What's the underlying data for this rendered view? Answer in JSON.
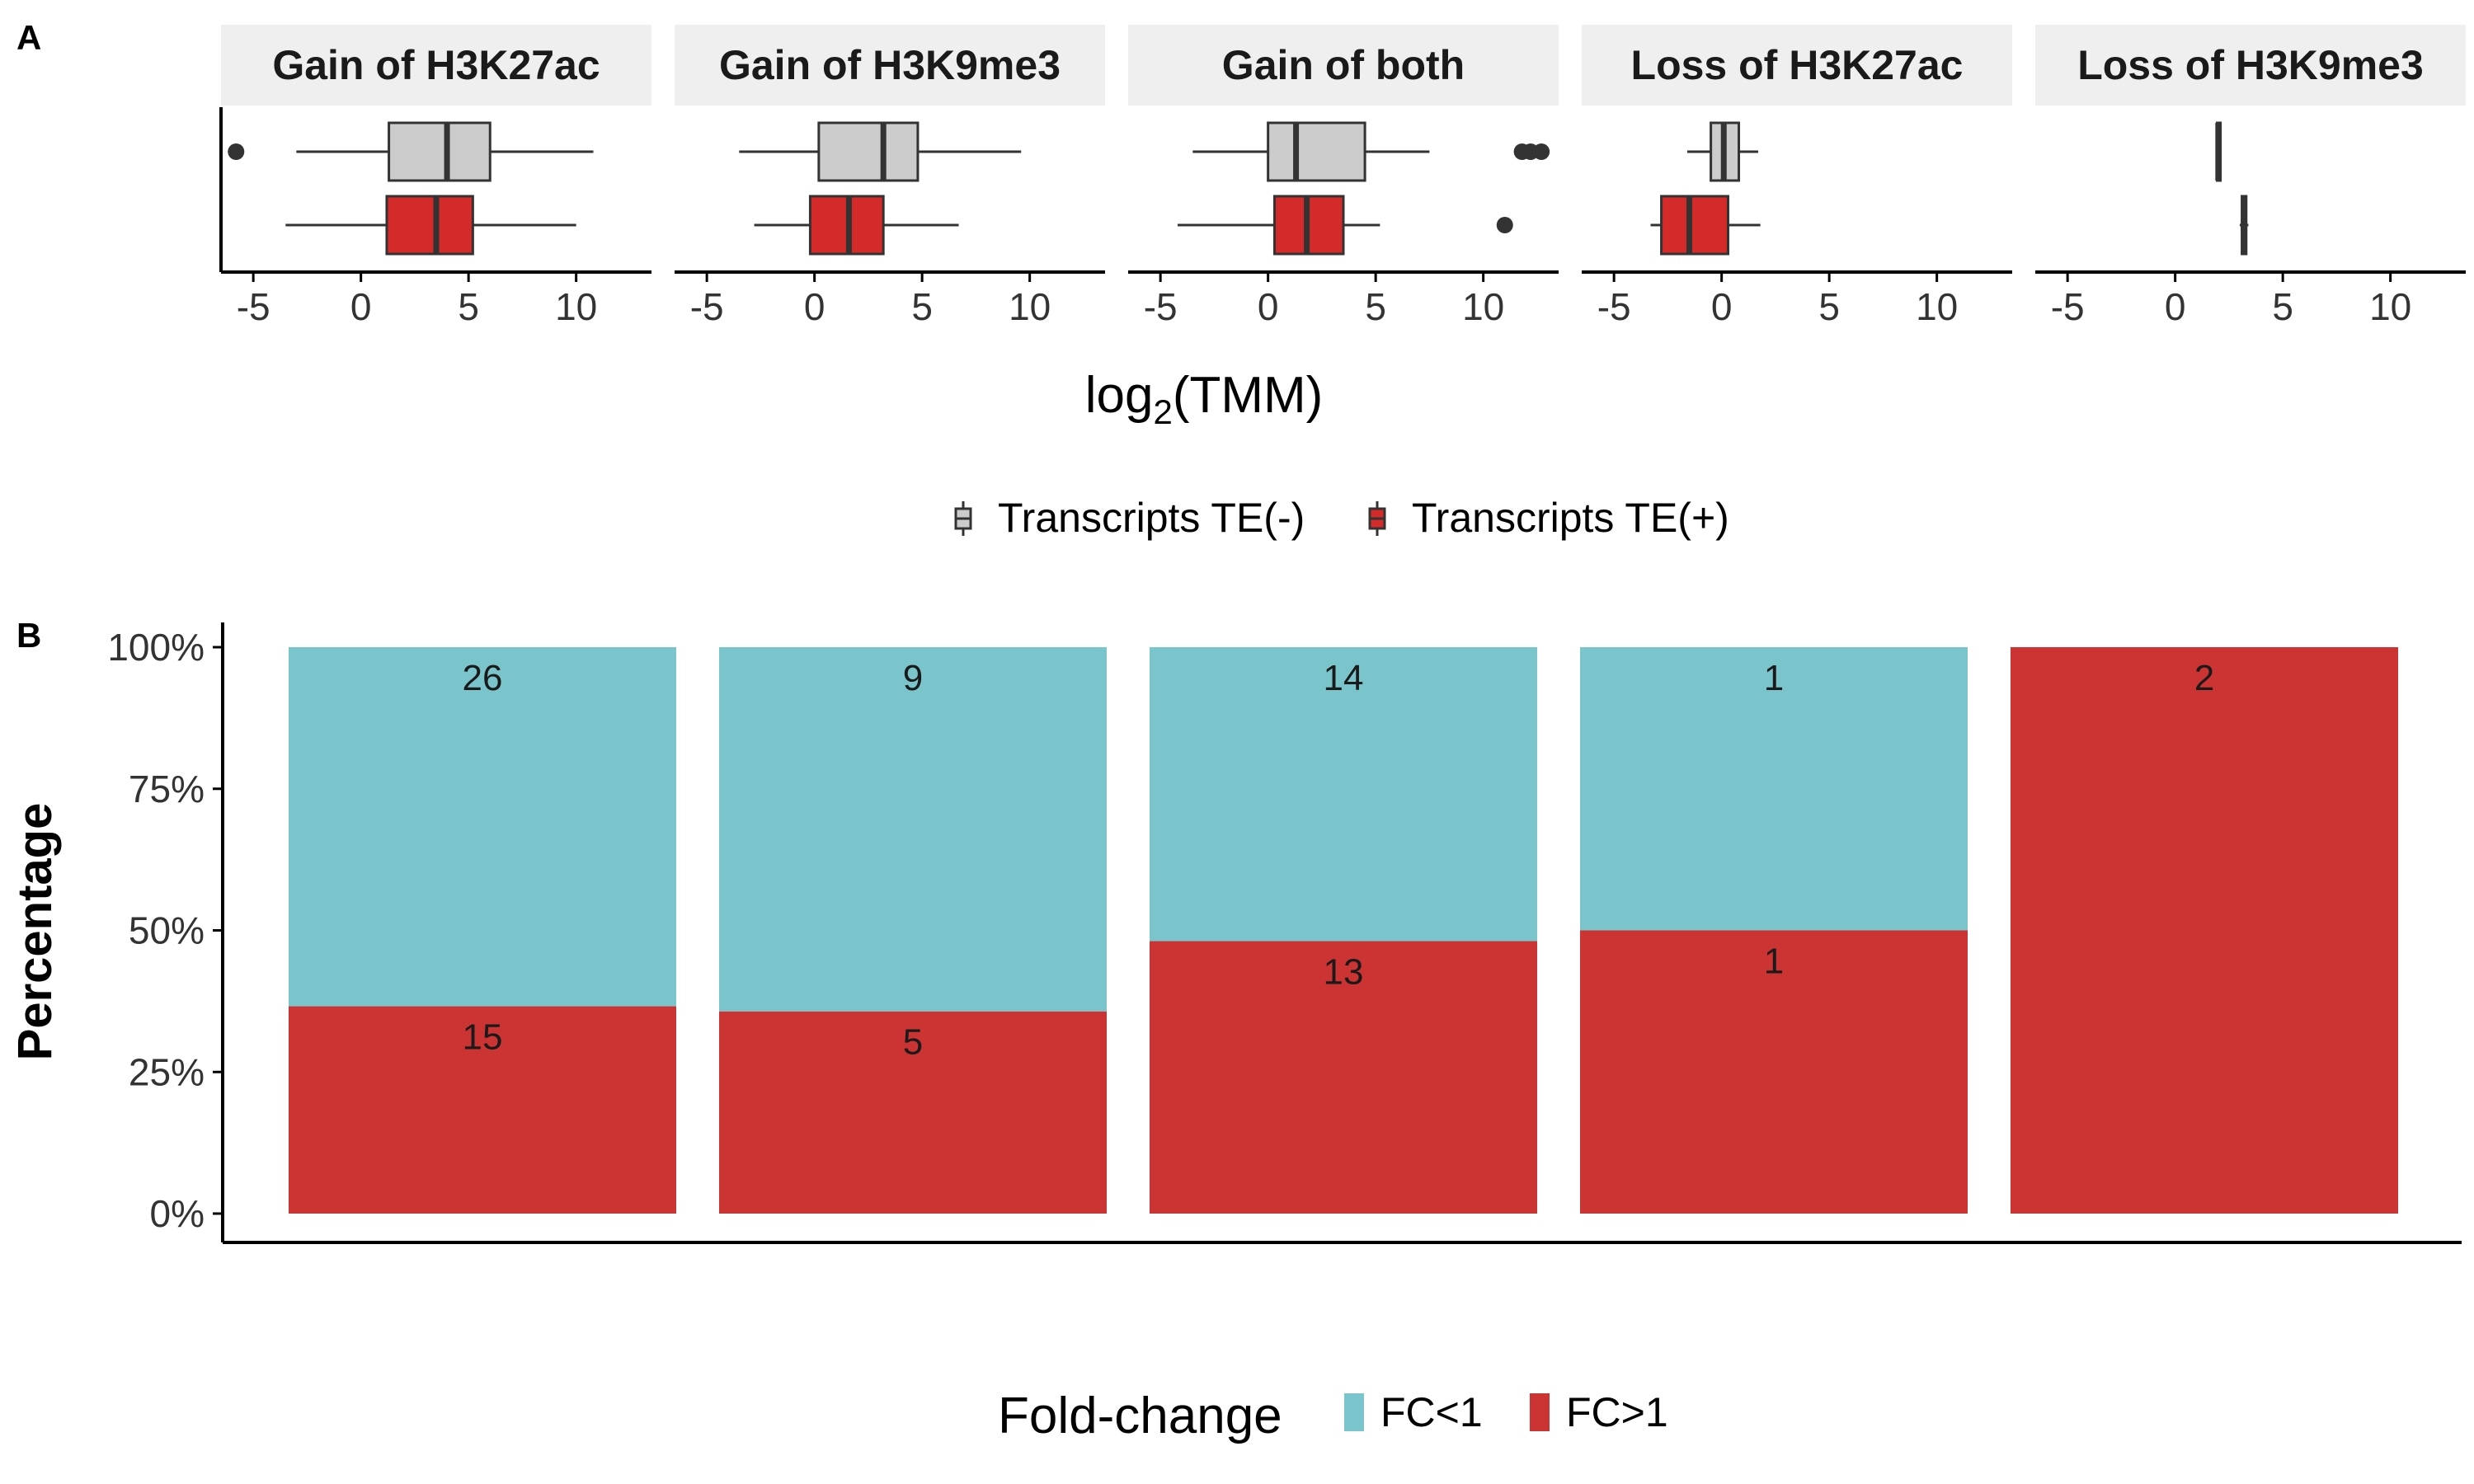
{
  "panel_a": {
    "tag": "A",
    "xlabel_main": "log",
    "xlabel_sub": "2",
    "xlabel_rest": "(TMM)",
    "legend": {
      "items": [
        {
          "label": "Transcripts TE(-)",
          "color": "#cccccc"
        },
        {
          "label": "Transcripts TE(+)",
          "color": "#d42a2a"
        }
      ]
    }
  },
  "panel_b": {
    "tag": "B",
    "ylabel": "Percentage",
    "legend": {
      "title": "Fold-change",
      "items": [
        {
          "label": "FC<1",
          "color": "#7ac4cc"
        },
        {
          "label": "FC>1",
          "color": "#cc3333"
        }
      ]
    }
  },
  "chart_data": [
    {
      "type": "box",
      "panels": [
        "Gain of H3K27ac",
        "Gain of H3K9me3",
        "Gain of both",
        "Loss of H3K27ac",
        "Loss of H3K9me3"
      ],
      "xlim": [
        -6.5,
        13.5
      ],
      "xticks": [
        -5,
        0,
        5,
        10
      ],
      "xtick_labels": [
        "-5",
        "0",
        "5",
        "10"
      ],
      "series": [
        {
          "name": "Transcripts TE(-)",
          "color": "#cccccc",
          "boxes": [
            {
              "whisker_low": -3,
              "q1": 1.3,
              "median": 4,
              "q3": 6,
              "whisker_high": 10.8,
              "outliers": [
                -5.8
              ]
            },
            {
              "whisker_low": -3.5,
              "q1": 0.2,
              "median": 3.2,
              "q3": 4.8,
              "whisker_high": 9.6,
              "outliers": []
            },
            {
              "whisker_low": -3.5,
              "q1": 0,
              "median": 1.3,
              "q3": 4.5,
              "whisker_high": 7.5,
              "outliers": [
                11.8,
                12.2,
                12.7
              ]
            },
            {
              "whisker_low": -1.6,
              "q1": -0.5,
              "median": 0.1,
              "q3": 0.8,
              "whisker_high": 1.7,
              "outliers": []
            },
            {
              "whisker_low": 1.9,
              "q1": 1.95,
              "median": 2.0,
              "q3": 2.1,
              "whisker_high": 2.15,
              "outliers": []
            }
          ]
        },
        {
          "name": "Transcripts TE(+)",
          "color": "#d42a2a",
          "boxes": [
            {
              "whisker_low": -3.5,
              "q1": 1.2,
              "median": 3.5,
              "q3": 5.2,
              "whisker_high": 10,
              "outliers": []
            },
            {
              "whisker_low": -2.8,
              "q1": -0.2,
              "median": 1.6,
              "q3": 3.2,
              "whisker_high": 6.7,
              "outliers": []
            },
            {
              "whisker_low": -4.2,
              "q1": 0.3,
              "median": 1.8,
              "q3": 3.5,
              "whisker_high": 5.2,
              "outliers": [
                11
              ]
            },
            {
              "whisker_low": -3.3,
              "q1": -2.8,
              "median": -1.5,
              "q3": 0.3,
              "whisker_high": 1.8,
              "outliers": []
            },
            {
              "whisker_low": 3.0,
              "q1": 3.1,
              "median": 3.2,
              "q3": 3.3,
              "whisker_high": 3.4,
              "outliers": []
            }
          ]
        }
      ]
    },
    {
      "type": "bar",
      "stacked": true,
      "percent": true,
      "categories": [
        "Gain of H3K27ac",
        "Gain of H3K9me3",
        "Gain of both",
        "Loss of H3K27ac",
        "Loss of H3K9me3"
      ],
      "ylabel": "Percentage",
      "ylim": [
        0,
        100
      ],
      "yticks": [
        0,
        25,
        50,
        75,
        100
      ],
      "ytick_labels": [
        "0%",
        "25%",
        "50%",
        "75%",
        "100%"
      ],
      "series": [
        {
          "name": "FC>1",
          "color": "#cc3333",
          "counts": [
            15,
            5,
            13,
            1,
            2
          ],
          "values": [
            36.6,
            35.7,
            48.1,
            50,
            100
          ]
        },
        {
          "name": "FC<1",
          "color": "#7ac4cc",
          "counts": [
            26,
            9,
            14,
            1,
            0
          ],
          "values": [
            63.4,
            64.3,
            51.9,
            50,
            0
          ]
        }
      ]
    }
  ]
}
